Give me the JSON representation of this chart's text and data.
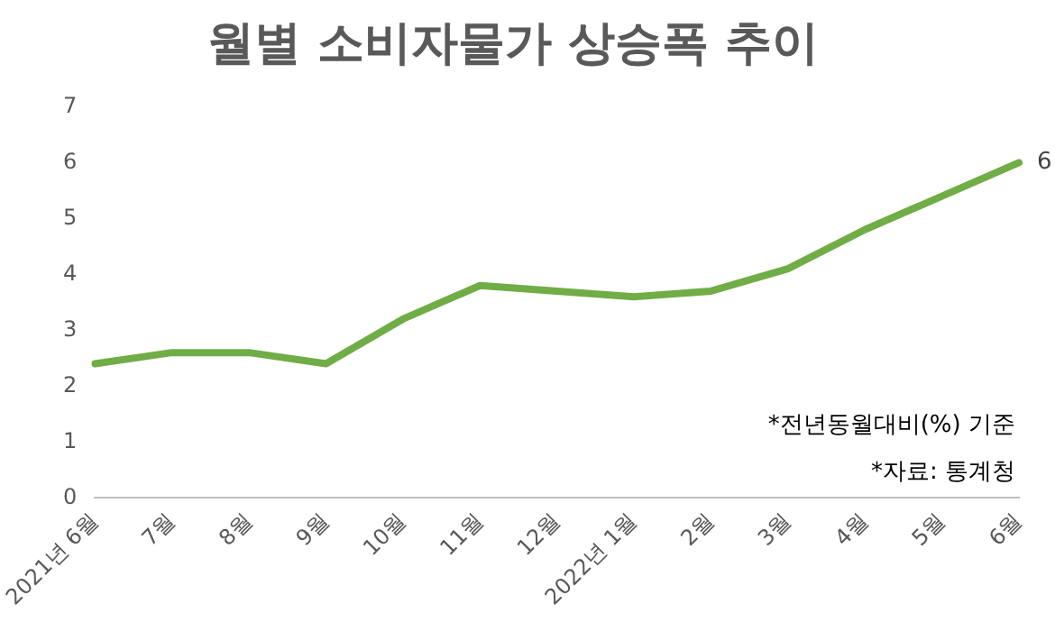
{
  "chart_data": {
    "type": "line",
    "title": "월별 소비자물가 상승폭 추이",
    "categories": [
      "2021년 6월",
      "7월",
      "8월",
      "9월",
      "10월",
      "11월",
      "12월",
      "2022년 1월",
      "2월",
      "3월",
      "4월",
      "5월",
      "6월"
    ],
    "series": [
      {
        "color": "#70ad47",
        "values": [
          2.4,
          2.6,
          2.6,
          2.4,
          3.2,
          3.8,
          3.7,
          3.6,
          3.7,
          4.1,
          4.8,
          5.4,
          6.0
        ],
        "value_labels": [
          null,
          null,
          null,
          null,
          null,
          null,
          null,
          null,
          null,
          null,
          null,
          null,
          "6"
        ]
      }
    ],
    "ylim": [
      0,
      7
    ],
    "yticks": [
      0,
      1,
      2,
      3,
      4,
      5,
      6,
      7
    ],
    "grid": false,
    "legend": false,
    "marker": "none",
    "line_style": "solid",
    "annotations": [
      "*전년동월대비(%) 기준",
      "*자료: 통계청"
    ]
  }
}
